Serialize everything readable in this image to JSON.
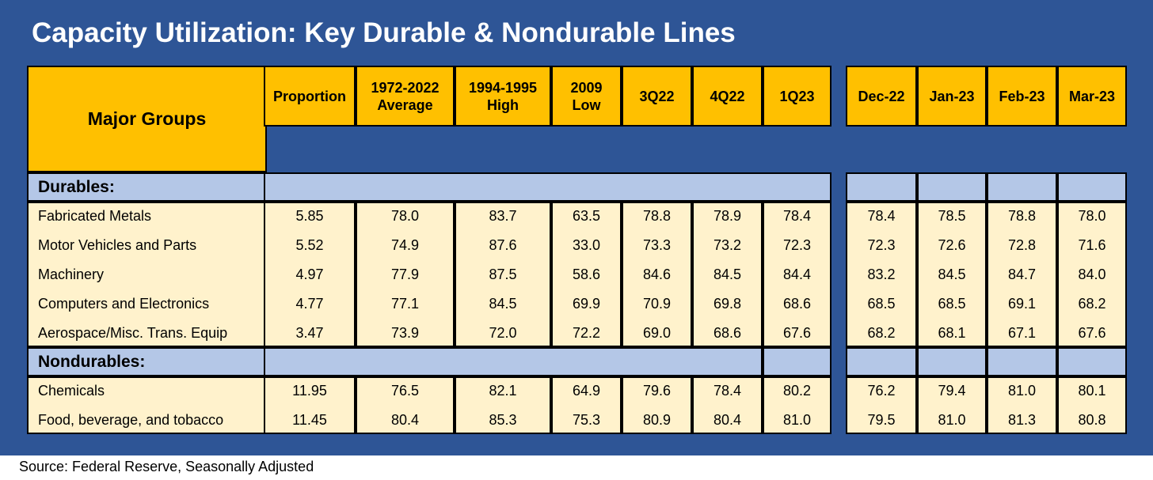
{
  "title": "Capacity Utilization: Key Durable & Nondurable Lines",
  "source": "Source: Federal Reserve, Seasonally Adjusted",
  "corner_label": "Major Groups",
  "headers_left": [
    [
      "Proportion"
    ],
    [
      "1972-2022",
      "Average"
    ],
    [
      "1994-1995",
      "High"
    ],
    [
      "2009",
      "Low"
    ],
    [
      "3Q22"
    ],
    [
      "4Q22"
    ],
    [
      "1Q23"
    ]
  ],
  "headers_right": [
    "Dec-22",
    "Jan-23",
    "Feb-23",
    "Mar-23"
  ],
  "sections": [
    {
      "name": "Durables:",
      "rows": [
        {
          "label": "Fabricated Metals",
          "left": [
            "5.85",
            "78.0",
            "83.7",
            "63.5",
            "78.8",
            "78.9",
            "78.4"
          ],
          "right": [
            "78.4",
            "78.5",
            "78.8",
            "78.0"
          ]
        },
        {
          "label": "Motor Vehicles and Parts",
          "left": [
            "5.52",
            "74.9",
            "87.6",
            "33.0",
            "73.3",
            "73.2",
            "72.3"
          ],
          "right": [
            "72.3",
            "72.6",
            "72.8",
            "71.6"
          ]
        },
        {
          "label": "Machinery",
          "left": [
            "4.97",
            "77.9",
            "87.5",
            "58.6",
            "84.6",
            "84.5",
            "84.4"
          ],
          "right": [
            "83.2",
            "84.5",
            "84.7",
            "84.0"
          ]
        },
        {
          "label": "Computers and Electronics",
          "left": [
            "4.77",
            "77.1",
            "84.5",
            "69.9",
            "70.9",
            "69.8",
            "68.6"
          ],
          "right": [
            "68.5",
            "68.5",
            "69.1",
            "68.2"
          ]
        },
        {
          "label": "Aerospace/Misc. Trans. Equip",
          "left": [
            "3.47",
            "73.9",
            "72.0",
            "72.2",
            "69.0",
            "68.6",
            "67.6"
          ],
          "right": [
            "68.2",
            "68.1",
            "67.1",
            "67.6"
          ]
        }
      ]
    },
    {
      "name": "Nondurables:",
      "rows": [
        {
          "label": "Chemicals",
          "left": [
            "11.95",
            "76.5",
            "82.1",
            "64.9",
            "79.6",
            "78.4",
            "80.2"
          ],
          "right": [
            "76.2",
            "79.4",
            "81.0",
            "80.1"
          ]
        },
        {
          "label": "Food, beverage, and tobacco",
          "left": [
            "11.45",
            "80.4",
            "85.3",
            "75.3",
            "80.9",
            "80.4",
            "81.0"
          ],
          "right": [
            "79.5",
            "81.0",
            "81.3",
            "80.8"
          ]
        }
      ]
    }
  ],
  "colors": {
    "background": "#2e5596",
    "header_fill": "#ffc000",
    "section_fill": "#b4c7e7",
    "body_fill": "#fff2cc"
  }
}
